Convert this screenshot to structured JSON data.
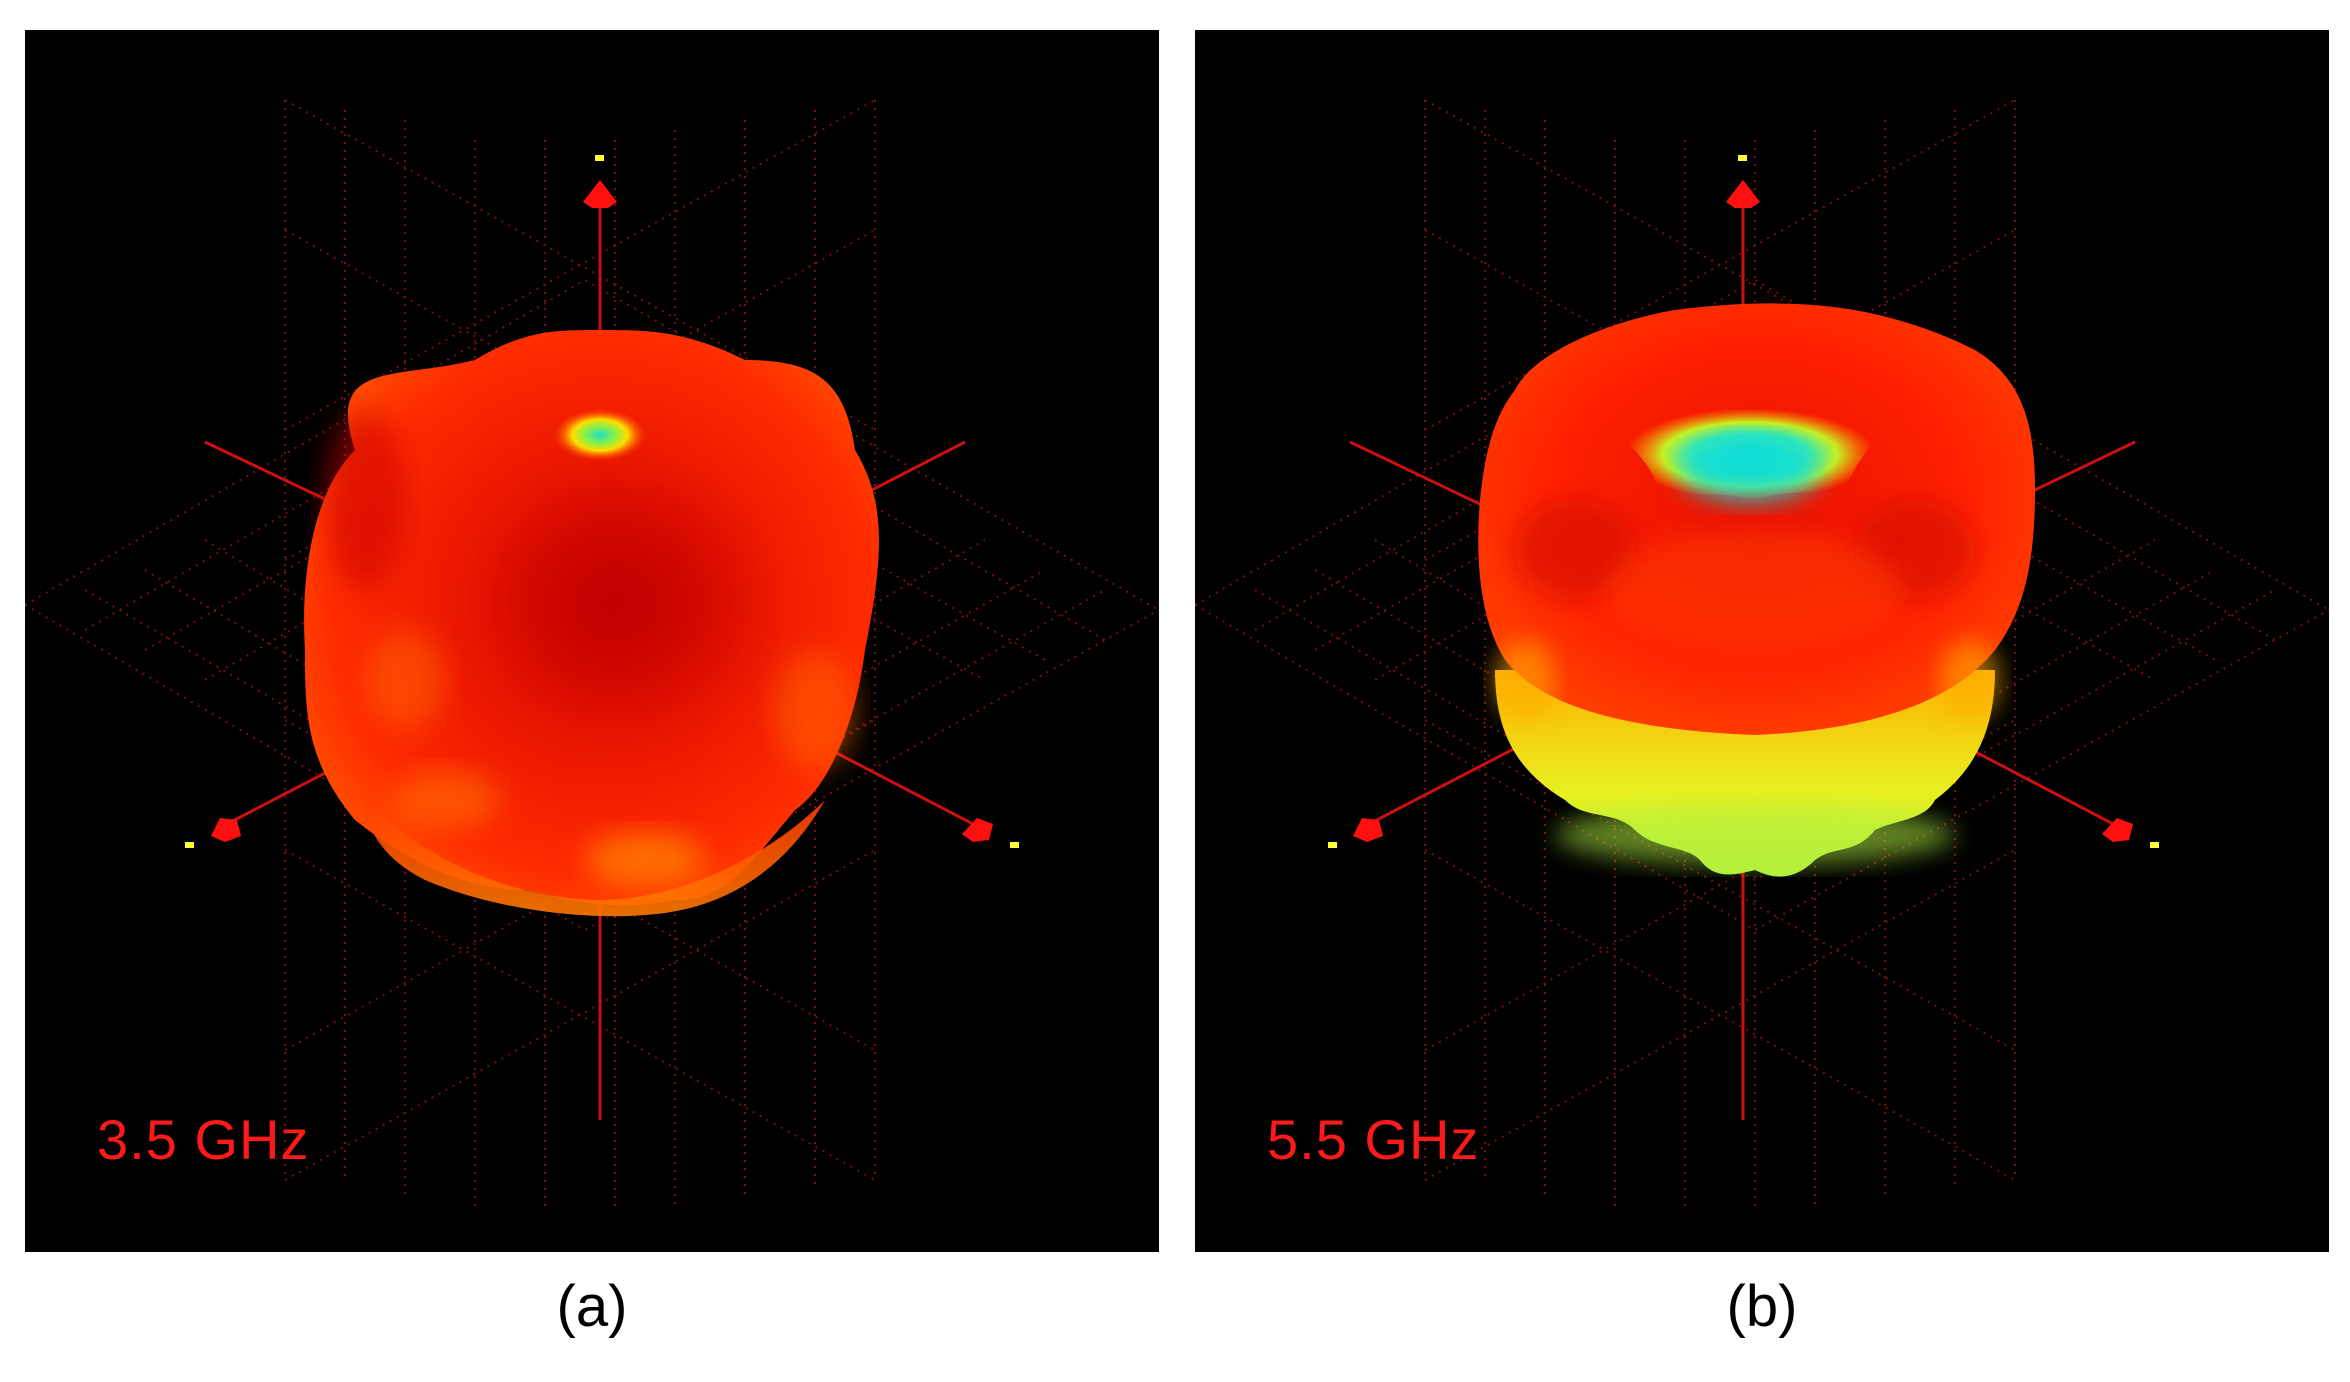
{
  "figure": {
    "panels": [
      {
        "id": "a",
        "caption": "(a)",
        "frequency_label": "3.5 GHz"
      },
      {
        "id": "b",
        "caption": "(b)",
        "frequency_label": "5.5 GHz"
      }
    ],
    "colors": {
      "background": "#000000",
      "axis": "#cc1010",
      "grid": "#8a1010",
      "label": "#ff1a1a",
      "axis_tick": "#ffff33",
      "pattern_high": "#ff2200",
      "pattern_deep": "#cc0000",
      "pattern_mid": "#ffcc00",
      "pattern_low": "#22e0d0"
    }
  }
}
